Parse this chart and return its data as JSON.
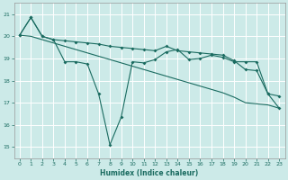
{
  "xlabel": "Humidex (Indice chaleur)",
  "ylabel": "",
  "xlim": [
    -0.5,
    23.5
  ],
  "ylim": [
    14.5,
    21.5
  ],
  "yticks": [
    15,
    16,
    17,
    18,
    19,
    20,
    21
  ],
  "xticks": [
    0,
    1,
    2,
    3,
    4,
    5,
    6,
    7,
    8,
    9,
    10,
    11,
    12,
    13,
    14,
    15,
    16,
    17,
    18,
    19,
    20,
    21,
    22,
    23
  ],
  "bg_color": "#cceae8",
  "line_color": "#1a6b60",
  "grid_color": "#ffffff",
  "line1_x": [
    0,
    1,
    2,
    3,
    4,
    5,
    6,
    7,
    8,
    9,
    10,
    11,
    12,
    13,
    14,
    15,
    16,
    17,
    18,
    19,
    20,
    21,
    22,
    23
  ],
  "line1_y": [
    20.05,
    20.85,
    20.0,
    19.85,
    18.85,
    18.85,
    18.75,
    17.4,
    15.1,
    16.35,
    18.85,
    18.8,
    18.95,
    19.3,
    19.4,
    18.95,
    19.0,
    19.15,
    19.05,
    18.85,
    18.85,
    18.85,
    17.4,
    16.75
  ],
  "line2_x": [
    0,
    1,
    2,
    3,
    4,
    5,
    6,
    7,
    8,
    9,
    10,
    11,
    12,
    13,
    14,
    15,
    16,
    17,
    18,
    19,
    20,
    21,
    22,
    23
  ],
  "line2_y": [
    20.05,
    20.85,
    20.0,
    19.85,
    19.8,
    19.75,
    19.7,
    19.65,
    19.55,
    19.5,
    19.45,
    19.4,
    19.35,
    19.55,
    19.35,
    19.3,
    19.25,
    19.2,
    19.15,
    18.9,
    18.5,
    18.45,
    17.4,
    17.3
  ],
  "line3_x": [
    0,
    1,
    2,
    3,
    4,
    5,
    6,
    7,
    8,
    9,
    10,
    11,
    12,
    13,
    14,
    15,
    16,
    17,
    18,
    19,
    20,
    21,
    22,
    23
  ],
  "line3_y": [
    20.05,
    20.0,
    19.85,
    19.7,
    19.55,
    19.4,
    19.25,
    19.1,
    18.95,
    18.8,
    18.65,
    18.5,
    18.35,
    18.2,
    18.05,
    17.9,
    17.75,
    17.6,
    17.45,
    17.25,
    17.0,
    16.95,
    16.9,
    16.75
  ]
}
